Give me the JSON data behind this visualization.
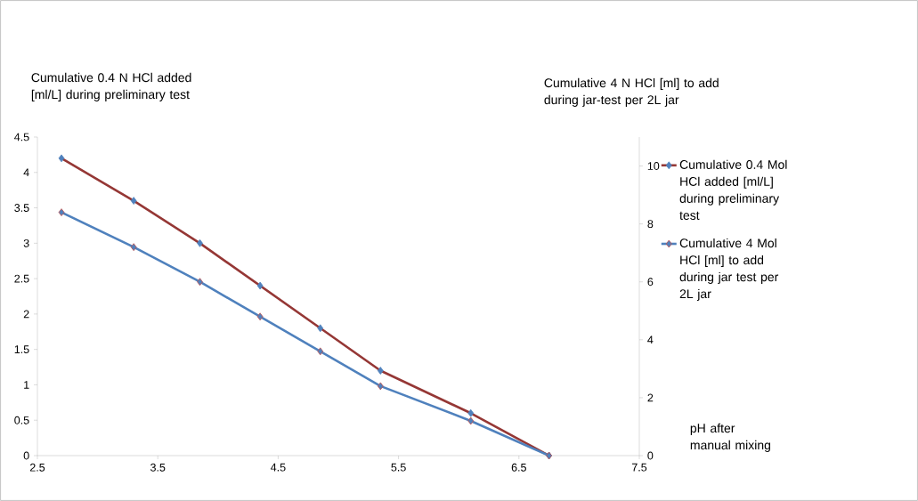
{
  "chart_data": {
    "type": "line",
    "ylabel": "Cumulative 0.4 N HCl added [ml/L] during preliminary test",
    "y2label": "Cumulative 4 N HCl [ml] to add during jar-test per 2L jar",
    "xlabel": "pH after manual mixing",
    "x": [
      2.7,
      3.3,
      3.85,
      4.35,
      4.85,
      5.35,
      6.1,
      6.75
    ],
    "series": [
      {
        "name": "Cumulative 0.4 Mol HCl added [ml/L] during preliminary test",
        "color": "#953735",
        "values": [
          4.2,
          3.6,
          3.0,
          2.4,
          1.8,
          1.2,
          0.6,
          0
        ]
      },
      {
        "name": "Cumulative 4 Mol HCl [ml] to add during jar test per 2L jar",
        "color": "#4f81bd",
        "axis": "y2",
        "values": [
          8.4,
          7.2,
          6.0,
          4.8,
          3.6,
          2.4,
          1.2,
          0
        ]
      }
    ],
    "xlim": [
      2.5,
      7.5
    ],
    "xticks": [
      2.5,
      3.5,
      4.5,
      5.5,
      6.5,
      7.5
    ],
    "ylim": [
      0,
      4.5
    ],
    "yticks": [
      0,
      0.5,
      1,
      1.5,
      2,
      2.5,
      3,
      3.5,
      4,
      4.5
    ],
    "y2lim": [
      0,
      11
    ],
    "y2ticks": [
      0,
      2,
      4,
      6,
      8,
      10
    ],
    "marker": "diamond",
    "line_style": "solid",
    "legend": "right",
    "grid": false
  }
}
